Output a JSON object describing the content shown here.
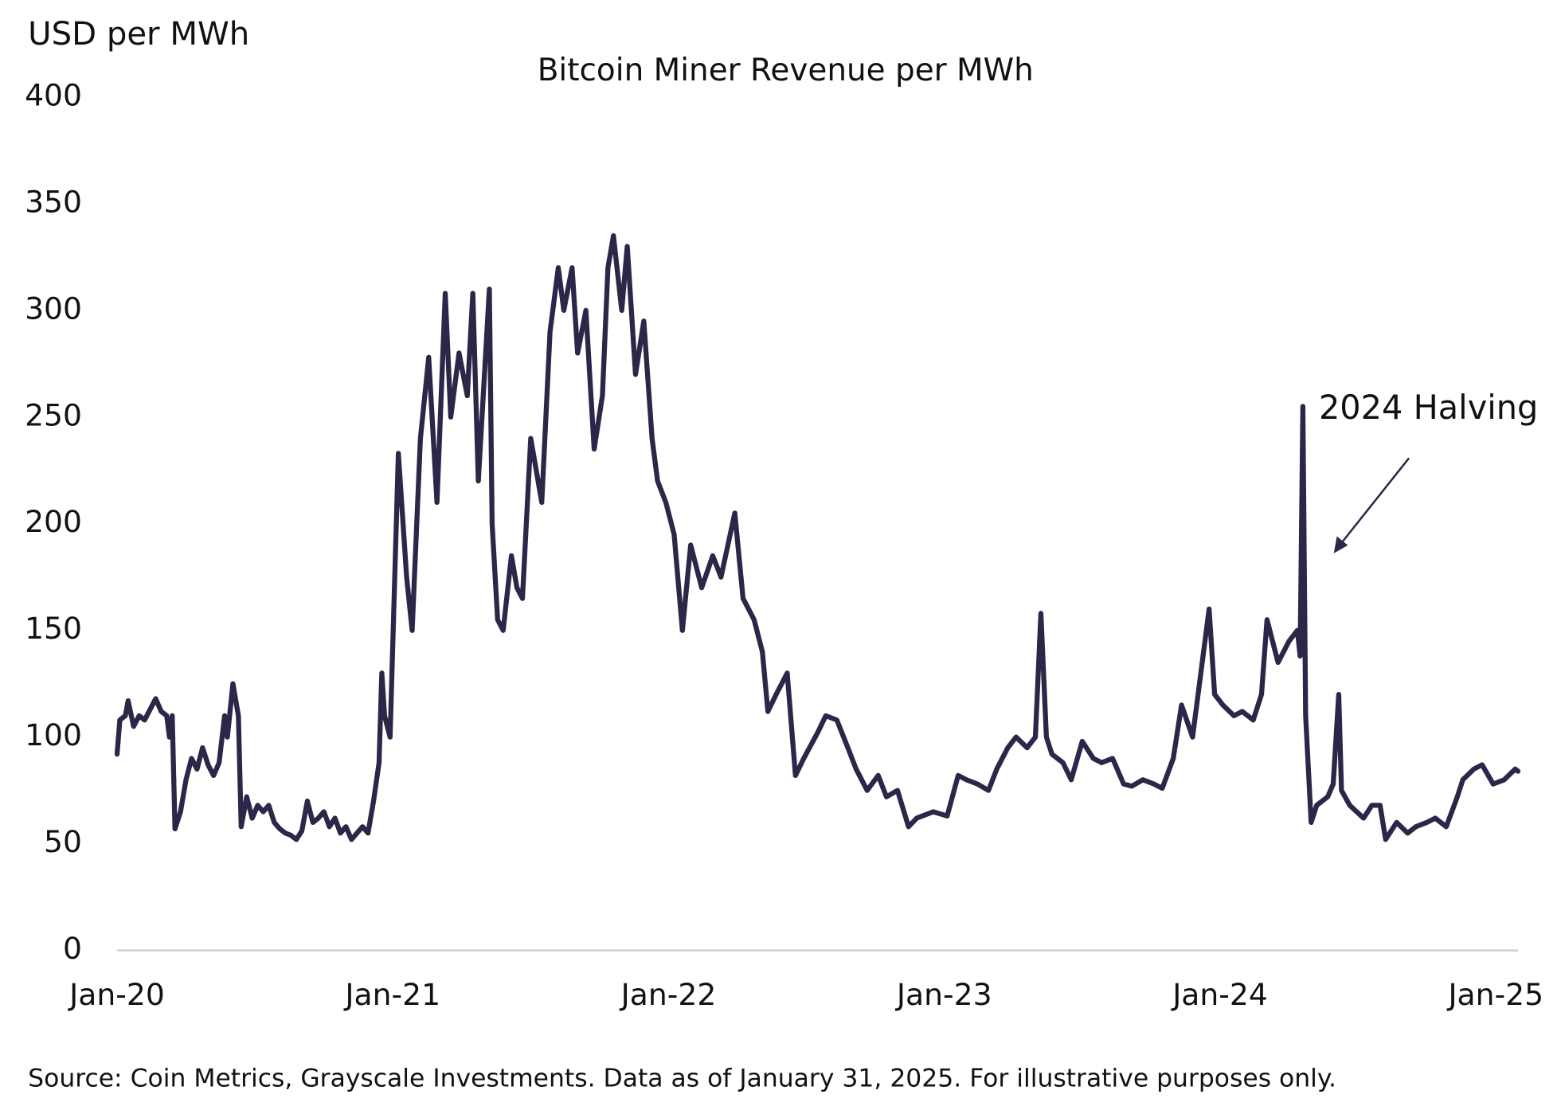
{
  "chart_data": {
    "type": "line",
    "title": "Bitcoin Miner Revenue per MWh",
    "y_label": "USD per MWh",
    "annotation": "2024 Halving",
    "source": "Source: Coin Metrics, Grayscale Investments. Data as of January 31, 2025. For illustrative purposes only.",
    "color": "#2c2648",
    "xlim": [
      2020,
      2025.08
    ],
    "xticks": [
      {
        "value": 2020,
        "label": "Jan-20"
      },
      {
        "value": 2021,
        "label": "Jan-21"
      },
      {
        "value": 2022,
        "label": "Jan-22"
      },
      {
        "value": 2023,
        "label": "Jan-23"
      },
      {
        "value": 2024,
        "label": "Jan-24"
      },
      {
        "value": 2025,
        "label": "Jan-25"
      }
    ],
    "ylim": [
      0,
      400
    ],
    "yticks": [
      0,
      50,
      100,
      150,
      200,
      250,
      300,
      350,
      400
    ],
    "x": [
      2020.0,
      2020.01,
      2020.03,
      2020.04,
      2020.06,
      2020.08,
      2020.1,
      2020.12,
      2020.14,
      2020.16,
      2020.18,
      2020.19,
      2020.2,
      2020.21,
      2020.23,
      2020.25,
      2020.27,
      2020.29,
      2020.31,
      2020.33,
      2020.35,
      2020.37,
      2020.39,
      2020.4,
      2020.42,
      2020.44,
      2020.45,
      2020.47,
      2020.49,
      2020.51,
      2020.53,
      2020.55,
      2020.57,
      2020.59,
      2020.61,
      2020.63,
      2020.65,
      2020.67,
      2020.69,
      2020.71,
      2020.73,
      2020.75,
      2020.77,
      2020.79,
      2020.81,
      2020.83,
      2020.85,
      2020.87,
      2020.89,
      2020.91,
      2020.93,
      2020.95,
      2020.96,
      2020.97,
      2020.99,
      2021.02,
      2021.05,
      2021.07,
      2021.1,
      2021.13,
      2021.16,
      2021.19,
      2021.21,
      2021.24,
      2021.27,
      2021.29,
      2021.31,
      2021.35,
      2021.36,
      2021.38,
      2021.4,
      2021.43,
      2021.45,
      2021.47,
      2021.5,
      2021.54,
      2021.57,
      2021.6,
      2021.62,
      2021.65,
      2021.67,
      2021.7,
      2021.73,
      2021.76,
      2021.78,
      2021.8,
      2021.83,
      2021.85,
      2021.88,
      2021.91,
      2021.94,
      2021.96,
      2021.99,
      2022.02,
      2022.05,
      2022.08,
      2022.12,
      2022.16,
      2022.19,
      2022.24,
      2022.27,
      2022.31,
      2022.34,
      2022.36,
      2022.39,
      2022.43,
      2022.46,
      2022.49,
      2022.54,
      2022.57,
      2022.61,
      2022.65,
      2022.68,
      2022.72,
      2022.76,
      2022.79,
      2022.83,
      2022.87,
      2022.9,
      2022.96,
      2023.01,
      2023.05,
      2023.08,
      2023.12,
      2023.16,
      2023.19,
      2023.23,
      2023.26,
      2023.3,
      2023.33,
      2023.35,
      2023.37,
      2023.39,
      2023.43,
      2023.46,
      2023.5,
      2023.54,
      2023.57,
      2023.61,
      2023.65,
      2023.68,
      2023.72,
      2023.76,
      2023.79,
      2023.83,
      2023.86,
      2023.9,
      2023.93,
      2023.96,
      2023.98,
      2024.01,
      2024.05,
      2024.08,
      2024.12,
      2024.15,
      2024.17,
      2024.21,
      2024.25,
      2024.28,
      2024.29,
      2024.3,
      2024.31,
      2024.33,
      2024.35,
      2024.39,
      2024.41,
      2024.43,
      2024.44,
      2024.47,
      2024.52,
      2024.55,
      2024.58,
      2024.6,
      2024.64,
      2024.68,
      2024.71,
      2024.75,
      2024.78,
      2024.82,
      2024.86,
      2024.88,
      2024.92,
      2024.95,
      2024.99,
      2025.03,
      2025.07,
      2025.08
    ],
    "values": [
      92,
      108,
      110,
      117,
      105,
      110,
      108,
      113,
      118,
      112,
      110,
      100,
      110,
      57,
      65,
      80,
      90,
      85,
      95,
      87,
      82,
      88,
      110,
      100,
      125,
      110,
      58,
      72,
      62,
      68,
      65,
      68,
      60,
      57,
      55,
      54,
      52,
      56,
      70,
      60,
      62,
      65,
      58,
      62,
      55,
      58,
      52,
      55,
      58,
      55,
      70,
      88,
      130,
      110,
      100,
      233,
      175,
      150,
      240,
      278,
      210,
      308,
      250,
      280,
      260,
      308,
      220,
      310,
      200,
      155,
      150,
      185,
      170,
      165,
      240,
      210,
      290,
      320,
      300,
      320,
      280,
      300,
      235,
      260,
      320,
      335,
      300,
      330,
      270,
      295,
      240,
      220,
      210,
      195,
      150,
      190,
      170,
      185,
      175,
      205,
      165,
      155,
      140,
      112,
      120,
      130,
      82,
      90,
      102,
      110,
      108,
      95,
      85,
      75,
      82,
      72,
      75,
      58,
      62,
      65,
      63,
      82,
      80,
      78,
      75,
      85,
      95,
      100,
      95,
      100,
      158,
      100,
      92,
      88,
      80,
      98,
      90,
      88,
      90,
      78,
      77,
      80,
      78,
      76,
      90,
      115,
      100,
      130,
      160,
      120,
      115,
      110,
      112,
      108,
      120,
      155,
      135,
      145,
      150,
      138,
      255,
      110,
      60,
      68,
      72,
      78,
      120,
      75,
      68,
      62,
      68,
      68,
      52,
      60,
      55,
      58,
      60,
      62,
      58,
      72,
      80,
      85,
      87,
      78,
      80,
      85,
      84
    ]
  }
}
